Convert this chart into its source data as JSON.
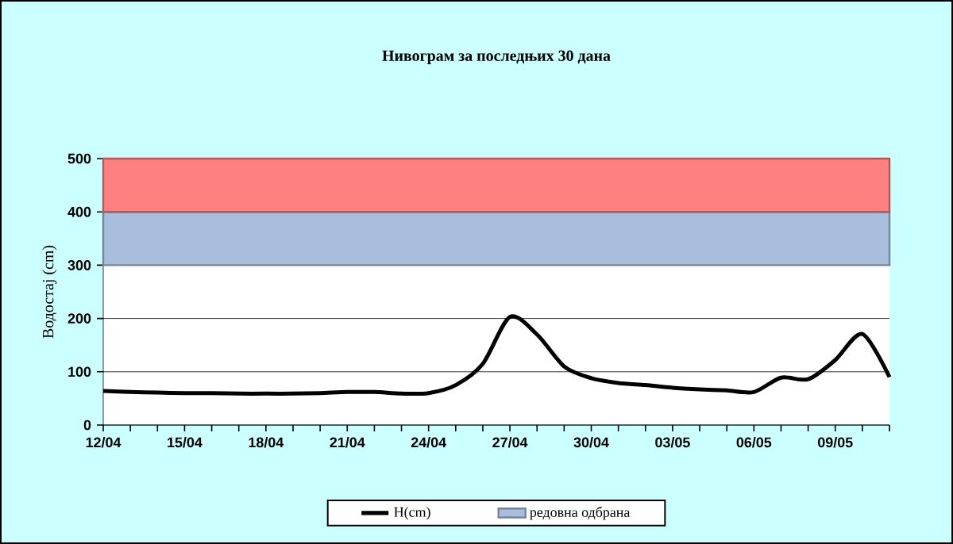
{
  "chart_data": {
    "type": "line",
    "title": "Нивограм за последњих 30 дана",
    "ylabel": "Водостај (cm)",
    "categories": [
      "12/04",
      null,
      null,
      "15/04",
      null,
      null,
      "18/04",
      null,
      null,
      "21/04",
      null,
      null,
      "24/04",
      null,
      null,
      "27/04",
      null,
      null,
      "30/04",
      null,
      null,
      "03/05",
      null,
      null,
      "06/05",
      null,
      null,
      "09/05",
      null,
      null
    ],
    "series": [
      {
        "name": "H(cm)",
        "color": "#000000",
        "values": [
          64,
          62,
          61,
          60,
          60,
          59,
          59,
          59,
          60,
          62,
          62,
          59,
          60,
          75,
          115,
          203,
          170,
          110,
          88,
          79,
          75,
          70,
          67,
          65,
          62,
          89,
          86,
          122,
          171,
          90
        ]
      }
    ],
    "ylim": [
      0,
      500
    ],
    "yticks": [
      0,
      100,
      200,
      300,
      400,
      500
    ],
    "grid": "y",
    "legend": "bottom",
    "marker": "none",
    "line_style": "solid",
    "bands": [
      {
        "axis": "y",
        "from": 300,
        "to": 400,
        "label": "редовна одбрана",
        "color": "#a9bedd"
      },
      {
        "axis": "y",
        "from": 400,
        "to": 500,
        "color": "#ff8080"
      }
    ]
  }
}
